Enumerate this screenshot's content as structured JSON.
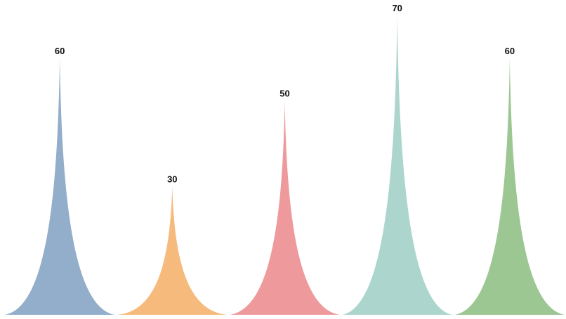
{
  "chart_data": {
    "type": "pictorial-spike",
    "values": [
      60,
      30,
      50,
      70,
      60
    ],
    "colors": [
      "#93aeca",
      "#f6ba7d",
      "#ee9a9c",
      "#acd5ce",
      "#9cc692"
    ]
  }
}
